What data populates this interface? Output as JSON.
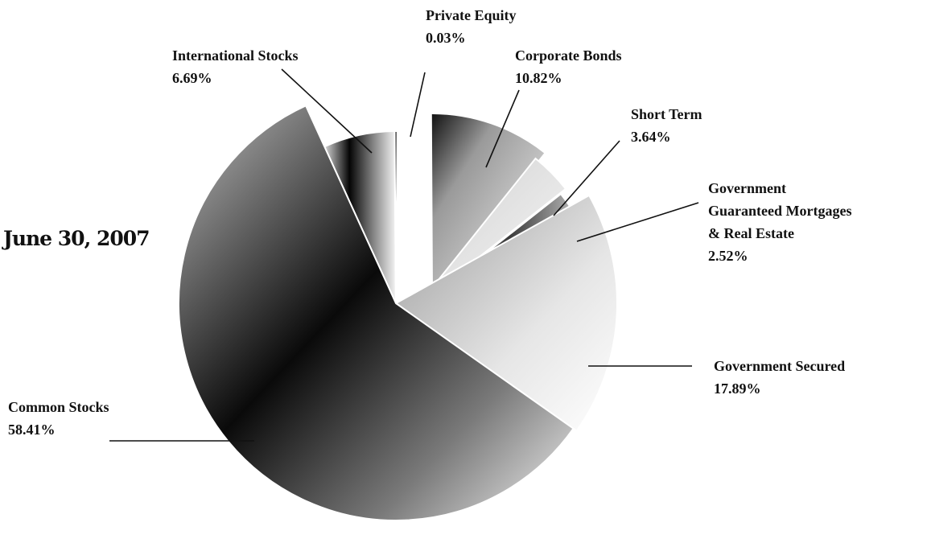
{
  "chart_data": {
    "type": "pie",
    "title": "June 30, 2007",
    "slices": [
      {
        "label": "Common Stocks",
        "value": 58.41,
        "display": "58.41%"
      },
      {
        "label": "International Stocks",
        "value": 6.69,
        "display": "6.69%"
      },
      {
        "label": "Private Equity",
        "value": 0.03,
        "display": "0.03%"
      },
      {
        "label": "Corporate Bonds",
        "value": 10.82,
        "display": "10.82%"
      },
      {
        "label": "Short Term",
        "value": 3.64,
        "display": "3.64%"
      },
      {
        "label": "Government Guaranteed Mortgages & Real Estate",
        "lines": [
          "Government",
          "Guaranteed Mortgages",
          "& Real Estate"
        ],
        "value": 2.52,
        "display": "2.52%"
      },
      {
        "label": "Government Secured",
        "value": 17.89,
        "display": "17.89%"
      }
    ],
    "legend": "none",
    "style": "exploded, grayscale gradient"
  },
  "colors": {
    "background": "#ffffff",
    "text": "#111111",
    "slice_dark": "#000000",
    "slice_light": "#ffffff"
  }
}
